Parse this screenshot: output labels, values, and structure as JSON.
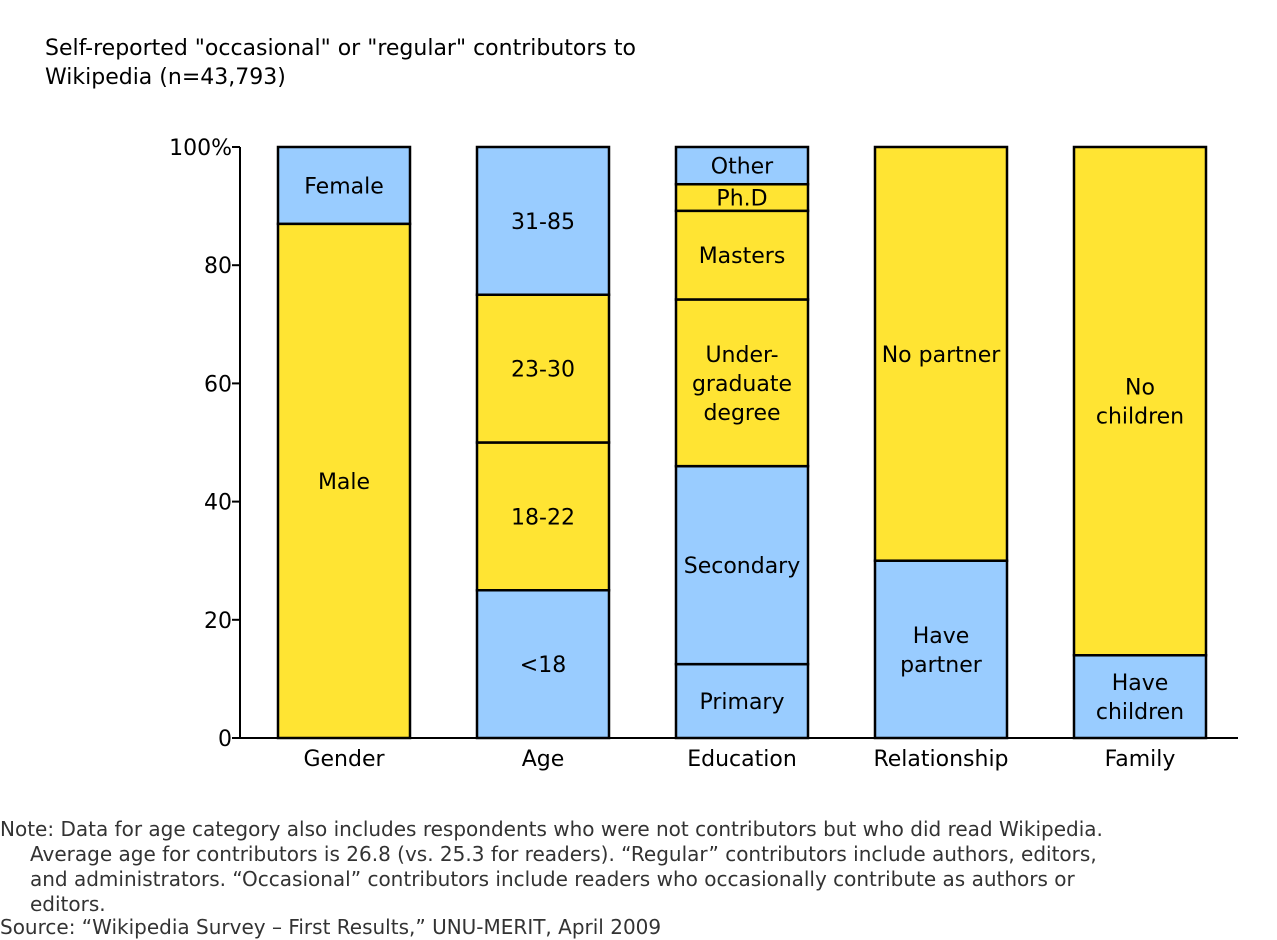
{
  "chart_data": {
    "type": "bar",
    "stacked": true,
    "title": "Self-reported \"occasional\" or \"regular\" contributors to\nWikipedia (n=43,793)",
    "xlabel": "",
    "ylabel": "",
    "ylim": [
      0,
      100
    ],
    "yticks": [
      "0",
      "20",
      "40",
      "60",
      "80",
      "100%"
    ],
    "ytick_values": [
      0,
      20,
      40,
      60,
      80,
      100
    ],
    "grid": false,
    "colors": {
      "yellow": "#ffe433",
      "blue": "#99ccff"
    },
    "categories": [
      {
        "name": "Gender",
        "segments": [
          {
            "label": "Male",
            "value": 87,
            "color": "yellow"
          },
          {
            "label": "Female",
            "value": 13,
            "color": "blue"
          }
        ]
      },
      {
        "name": "Age",
        "segments": [
          {
            "label": "<18",
            "value": 25,
            "color": "blue"
          },
          {
            "label": "18-22",
            "value": 25,
            "color": "yellow"
          },
          {
            "label": "23-30",
            "value": 25,
            "color": "yellow"
          },
          {
            "label": "31-85",
            "value": 25,
            "color": "blue"
          }
        ]
      },
      {
        "name": "Education",
        "segments": [
          {
            "label": "Primary",
            "value": 12.5,
            "color": "blue"
          },
          {
            "label": "Secondary",
            "value": 33.5,
            "color": "blue"
          },
          {
            "label": "Under-\ngraduate\ndegree",
            "value": 28.2,
            "color": "yellow"
          },
          {
            "label": "Masters",
            "value": 15,
            "color": "yellow"
          },
          {
            "label": "Ph.D",
            "value": 4.5,
            "color": "yellow"
          },
          {
            "label": "Other",
            "value": 6.3,
            "color": "blue"
          }
        ]
      },
      {
        "name": "Relationship",
        "segments": [
          {
            "label": "Have\npartner",
            "value": 30,
            "color": "blue"
          },
          {
            "label": "No partner",
            "value": 70,
            "color": "yellow"
          }
        ]
      },
      {
        "name": "Family",
        "segments": [
          {
            "label": "Have\nchildren",
            "value": 14,
            "color": "blue"
          },
          {
            "label": "No\nchildren",
            "value": 86,
            "color": "yellow"
          }
        ]
      }
    ]
  },
  "note": {
    "lead": "Note: Data for age category also includes respondents who were not contributors but who did read Wikipedia. Average age for contributors is 26.8 (vs. 25.3 for readers). “Regular” contributors include authors, editors, and administrators. “Occasional” contributors include readers who occasionally contribute as authors or editors."
  },
  "source": "Source: “Wikipedia Survey – First Results,” UNU-MERIT, April 2009"
}
